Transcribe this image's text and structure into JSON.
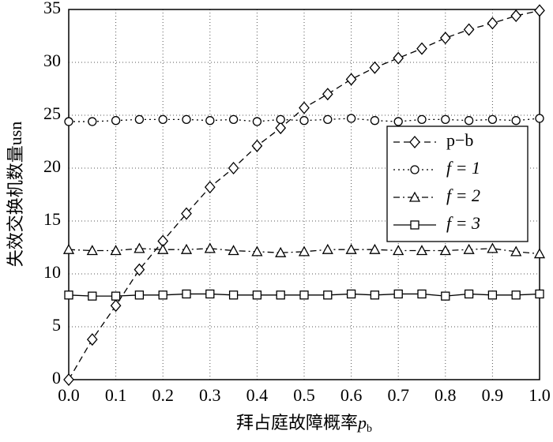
{
  "chart_data": {
    "type": "line",
    "ylabel": "失效交换机数量usn",
    "xlabel": "拜占庭故障概率",
    "xlabel_var": "p",
    "xlabel_sub": "b",
    "x": [
      0,
      0.05,
      0.1,
      0.15,
      0.2,
      0.25,
      0.3,
      0.35,
      0.4,
      0.45,
      0.5,
      0.55,
      0.6,
      0.65,
      0.7,
      0.75,
      0.8,
      0.85,
      0.9,
      0.95,
      1.0
    ],
    "series": [
      {
        "name": "p−b",
        "color": "#000000",
        "marker": "diamond",
        "linestyle": "dashed",
        "values": [
          0,
          3.8,
          7.0,
          10.4,
          13.1,
          15.7,
          18.2,
          20.0,
          22.1,
          23.8,
          25.7,
          27.0,
          28.4,
          29.5,
          30.4,
          31.3,
          32.3,
          33.1,
          33.7,
          34.4,
          34.9
        ]
      },
      {
        "name": "f = 1",
        "color": "#000000",
        "marker": "circle",
        "linestyle": "dotted",
        "values": [
          24.4,
          24.4,
          24.5,
          24.6,
          24.6,
          24.6,
          24.5,
          24.6,
          24.4,
          24.6,
          24.5,
          24.6,
          24.7,
          24.5,
          24.4,
          24.6,
          24.6,
          24.5,
          24.6,
          24.5,
          24.7
        ]
      },
      {
        "name": "f = 2",
        "color": "#000000",
        "marker": "triangle",
        "linestyle": "dashdot",
        "values": [
          12.3,
          12.2,
          12.2,
          12.4,
          12.3,
          12.3,
          12.4,
          12.2,
          12.1,
          12.0,
          12.1,
          12.3,
          12.3,
          12.3,
          12.2,
          12.2,
          12.2,
          12.3,
          12.4,
          12.1,
          11.9
        ]
      },
      {
        "name": "f = 3",
        "color": "#000000",
        "marker": "square",
        "linestyle": "solid",
        "values": [
          8.0,
          7.9,
          7.9,
          8.0,
          8.0,
          8.1,
          8.1,
          8.0,
          8.0,
          8.0,
          8.0,
          8.0,
          8.1,
          8.0,
          8.1,
          8.1,
          7.9,
          8.1,
          8.0,
          8.0,
          8.1
        ]
      }
    ],
    "xlim": [
      0,
      1.0
    ],
    "xticks": [
      {
        "value": 0,
        "label": "0.0"
      },
      0.1,
      0.2,
      0.3,
      0.4,
      0.5,
      0.6,
      0.7,
      0.8,
      0.9,
      {
        "value": 1.0,
        "label": "1.0"
      }
    ],
    "ylim": [
      0,
      35
    ],
    "yticks": [
      0,
      5,
      10,
      15,
      20,
      25,
      30,
      35
    ],
    "grid": true,
    "legend": "right"
  }
}
